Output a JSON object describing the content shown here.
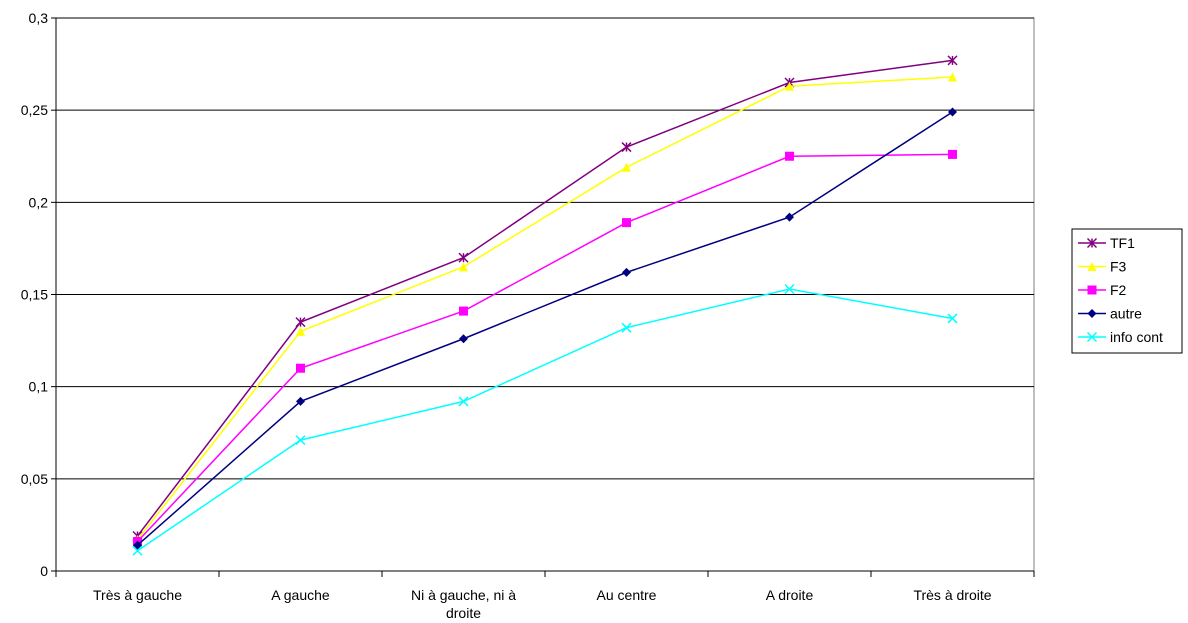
{
  "chart_data": {
    "type": "line",
    "categories": [
      "Très à gauche",
      "A gauche",
      "Ni à gauche, ni à droite",
      "Au centre",
      "A droite",
      "Très à droite"
    ],
    "ylim": [
      0,
      0.3
    ],
    "yticks": [
      0,
      0.05,
      0.1,
      0.15,
      0.2,
      0.25,
      0.3
    ],
    "ytick_labels": [
      "0",
      "0,05",
      "0,1",
      "0,15",
      "0,2",
      "0,25",
      "0,3"
    ],
    "grid": true,
    "legend_position": "right",
    "series": [
      {
        "name": "TF1",
        "color": "#800080",
        "marker": "asterisk",
        "values": [
          0.019,
          0.135,
          0.17,
          0.23,
          0.265,
          0.277
        ]
      },
      {
        "name": "F3",
        "color": "#FFFF00",
        "marker": "triangle",
        "values": [
          0.017,
          0.13,
          0.165,
          0.219,
          0.263,
          0.268
        ]
      },
      {
        "name": "F2",
        "color": "#FF00FF",
        "marker": "square",
        "values": [
          0.016,
          0.11,
          0.141,
          0.189,
          0.225,
          0.226
        ]
      },
      {
        "name": "autre",
        "color": "#000080",
        "marker": "diamond",
        "values": [
          0.014,
          0.092,
          0.126,
          0.162,
          0.192,
          0.249
        ]
      },
      {
        "name": "info cont",
        "color": "#00FFFF",
        "marker": "x",
        "values": [
          0.011,
          0.071,
          0.092,
          0.132,
          0.153,
          0.137
        ]
      }
    ]
  }
}
